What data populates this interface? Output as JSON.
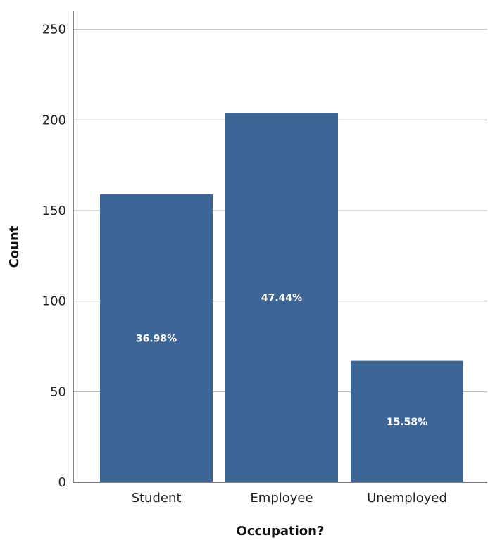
{
  "chart_data": {
    "type": "bar",
    "categories": [
      "Student",
      "Employee",
      "Unemployed"
    ],
    "values": [
      159,
      204,
      67
    ],
    "data_labels": [
      "36.98%",
      "47.44%",
      "15.58%"
    ],
    "title": "",
    "xlabel": "Occupation?",
    "ylabel": "Count",
    "ylim": [
      0,
      260
    ],
    "yticks": [
      0,
      50,
      100,
      150,
      200,
      250
    ],
    "grid": true,
    "bar_color": "#3d6595"
  }
}
